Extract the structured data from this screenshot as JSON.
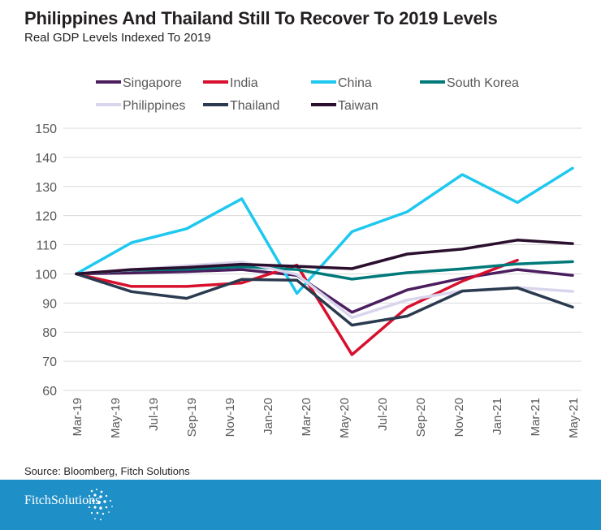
{
  "header": {
    "title": "Philippines And Thailand Still To Recover To 2019 Levels",
    "subtitle": "Real GDP Levels Indexed To 2019"
  },
  "footer": {
    "source": "Source: Bloomberg, Fitch Solutions",
    "brand": "FitchSolutions",
    "background_color": "#1f8fc7"
  },
  "chart_data": {
    "type": "line",
    "title": "Philippines And Thailand Still To Recover To 2019 Levels",
    "subtitle": "Real GDP Levels Indexed To 2019",
    "xlabel": "",
    "ylabel": "",
    "ylim": [
      60,
      150
    ],
    "yticks": [
      60,
      70,
      80,
      90,
      100,
      110,
      120,
      130,
      140,
      150
    ],
    "categories": [
      "Mar-19",
      "Jun-19",
      "Sep-19",
      "Dec-19",
      "Mar-20",
      "Jun-20",
      "Sep-20",
      "Dec-20",
      "Mar-21",
      "Jun-21"
    ],
    "tick_labels": [
      "Mar-19",
      "May-19",
      "Jul-19",
      "Sep-19",
      "Nov-19",
      "Jan-20",
      "Mar-20",
      "May-20",
      "Jul-20",
      "Sep-20",
      "Nov-20",
      "Jan-21",
      "Mar-21",
      "May-21"
    ],
    "legend_position": "top",
    "grid": true,
    "series": [
      {
        "name": "Singapore",
        "color": "#4b1e5e",
        "values": [
          100,
          100.3,
          100.8,
          101.5,
          99.5,
          86.8,
          94.5,
          98.5,
          101.5,
          99.5
        ]
      },
      {
        "name": "India",
        "color": "#d7102e",
        "values": [
          100,
          95.7,
          95.7,
          96.9,
          103,
          72.3,
          88.5,
          97.5,
          104.7,
          null
        ]
      },
      {
        "name": "China",
        "color": "#1ec8ef",
        "values": [
          100,
          110.7,
          115.5,
          125.8,
          93.3,
          114.5,
          121.3,
          134.1,
          124.5,
          136.3
        ]
      },
      {
        "name": "South Korea",
        "color": "#00797a",
        "values": [
          100,
          101.3,
          101.6,
          102.5,
          101.5,
          98.2,
          100.4,
          101.7,
          103.4,
          104.2
        ]
      },
      {
        "name": "Philippines",
        "color": "#d9d5ec",
        "values": [
          100,
          101.4,
          102.8,
          104.1,
          99.8,
          85,
          91,
          94.2,
          95.3,
          94
        ]
      },
      {
        "name": "Thailand",
        "color": "#2a3a4f",
        "values": [
          100,
          93.9,
          91.6,
          98.1,
          97.8,
          82.4,
          85.5,
          94.1,
          95.2,
          88.6
        ]
      },
      {
        "name": "Taiwan",
        "color": "#2b0f2e",
        "values": [
          100,
          101.5,
          102.2,
          103.3,
          102.6,
          101.8,
          106.8,
          108.5,
          111.6,
          110.4
        ]
      }
    ]
  }
}
